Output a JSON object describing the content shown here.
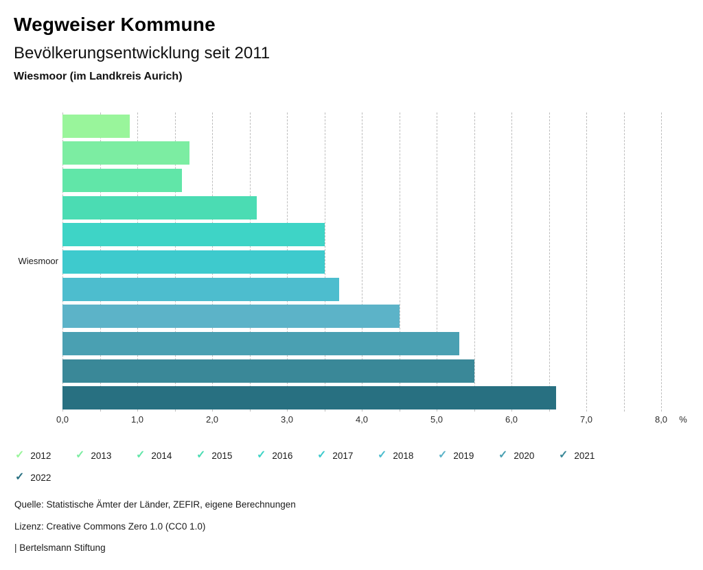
{
  "header": {
    "title": "Wegweiser Kommune",
    "subtitle": "Bevölkerungsentwicklung seit 2011",
    "region": "Wiesmoor (im Landkreis Aurich)"
  },
  "chart_data": {
    "type": "bar",
    "orientation": "horizontal",
    "category_label": "Wiesmoor",
    "unit_label": "%",
    "xlim": [
      0,
      8
    ],
    "gridline_step": 0.5,
    "grid_on": true,
    "x_ticks": [
      {
        "value": 0,
        "label": "0,0"
      },
      {
        "value": 1,
        "label": "1,0"
      },
      {
        "value": 2,
        "label": "2,0"
      },
      {
        "value": 3,
        "label": "3,0"
      },
      {
        "value": 4,
        "label": "4,0"
      },
      {
        "value": 5,
        "label": "5,0"
      },
      {
        "value": 6,
        "label": "6,0"
      },
      {
        "value": 7,
        "label": "7,0"
      },
      {
        "value": 8,
        "label": "8,0"
      }
    ],
    "series": [
      {
        "year": "2012",
        "value": 0.9,
        "color": "#99f59b"
      },
      {
        "year": "2013",
        "value": 1.7,
        "color": "#7ceda2"
      },
      {
        "year": "2014",
        "value": 1.6,
        "color": "#61e6a8"
      },
      {
        "year": "2015",
        "value": 2.6,
        "color": "#4bdcb3"
      },
      {
        "year": "2016",
        "value": 3.5,
        "color": "#3ed4c6"
      },
      {
        "year": "2017",
        "value": 3.5,
        "color": "#3ecacd"
      },
      {
        "year": "2018",
        "value": 3.7,
        "color": "#4dbdce"
      },
      {
        "year": "2019",
        "value": 4.5,
        "color": "#5cb3c8"
      },
      {
        "year": "2020",
        "value": 5.3,
        "color": "#4aa0b2"
      },
      {
        "year": "2021",
        "value": 5.5,
        "color": "#3a8898"
      },
      {
        "year": "2022",
        "value": 6.6,
        "color": "#287081"
      }
    ],
    "legend": {
      "check_glyph": "✓",
      "items_in_first_row": 10
    }
  },
  "footer": {
    "source": "Quelle: Statistische Ämter der Länder, ZEFIR, eigene Berechnungen",
    "license": "Lizenz: Creative Commons Zero 1.0 (CC0 1.0)",
    "brand": "| Bertelsmann Stiftung"
  }
}
